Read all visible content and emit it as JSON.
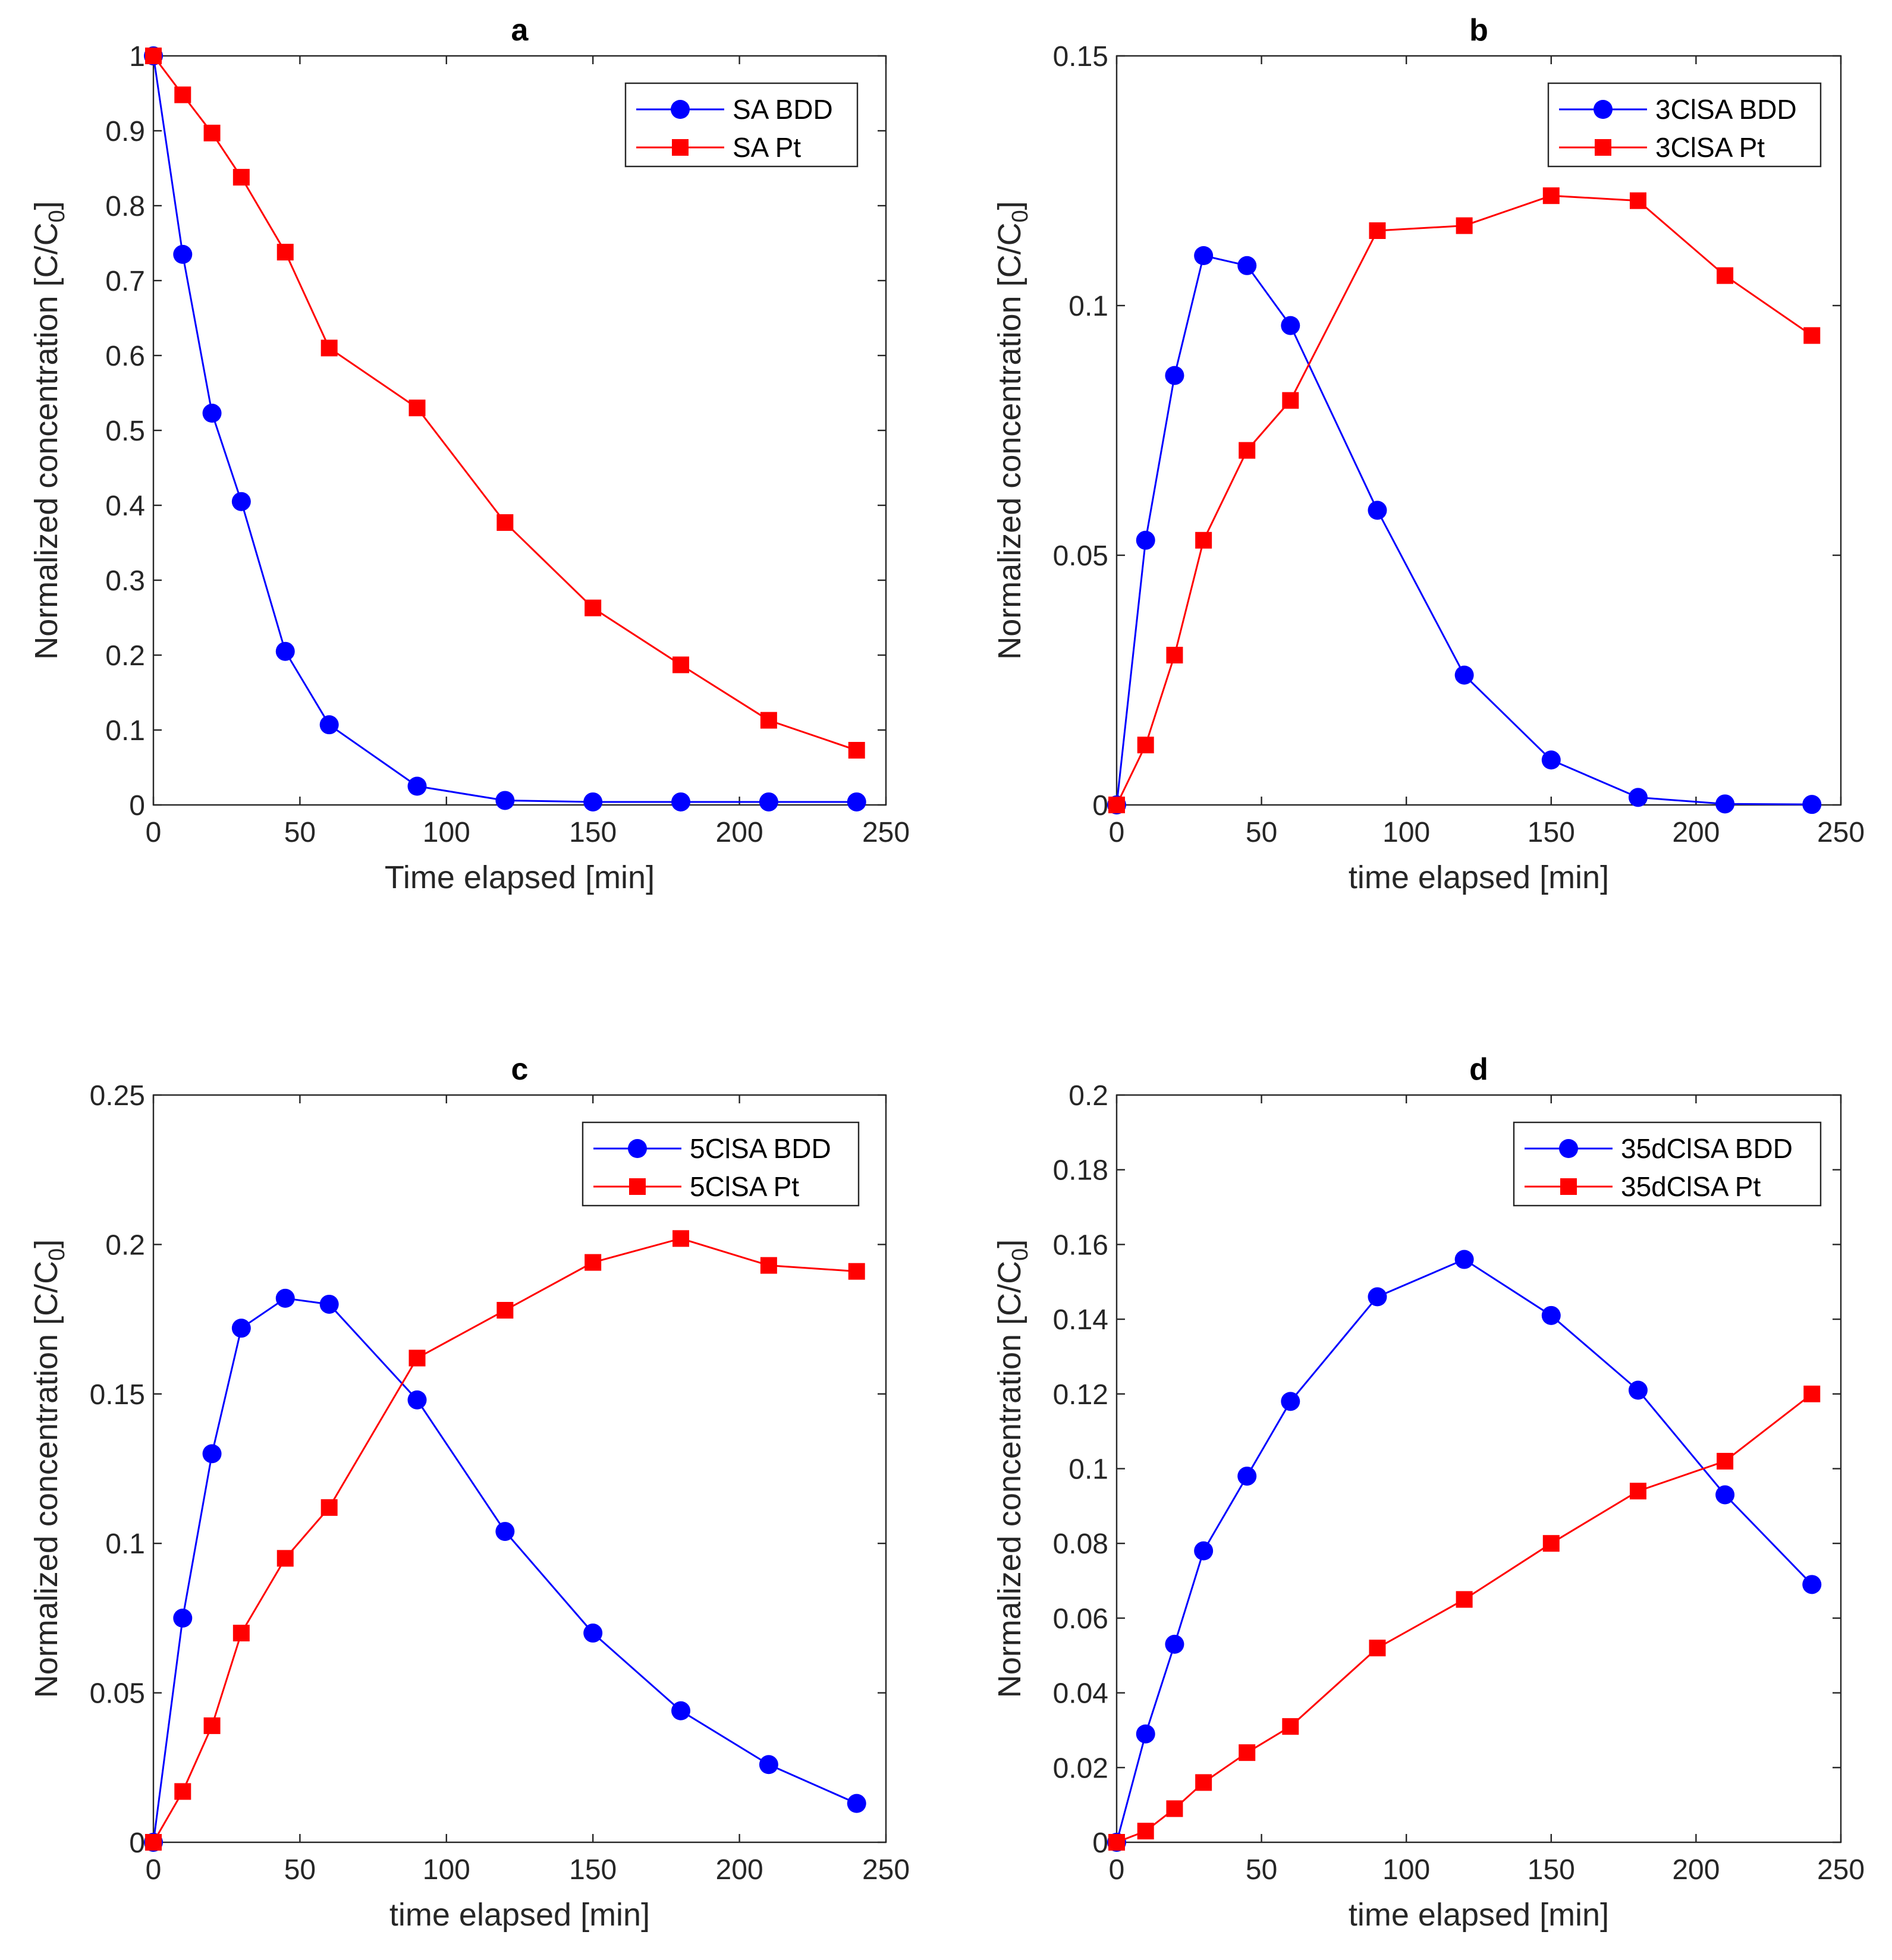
{
  "chart_data": [
    {
      "type": "line",
      "panel_title": "a",
      "xlabel": "Time elapsed [min]",
      "ylabel": "Normalized concentration [C/C",
      "ylabel_subscript": "0",
      "ylabel_close": "]",
      "xlim": [
        0,
        250
      ],
      "ylim": [
        0,
        1
      ],
      "xticks": [
        "0",
        "50",
        "100",
        "150",
        "200",
        "250"
      ],
      "yticks": [
        "0",
        "0.1",
        "0.2",
        "0.3",
        "0.4",
        "0.5",
        "0.6",
        "0.7",
        "0.8",
        "0.9",
        "1"
      ],
      "legend_position": "top-right",
      "x": [
        0,
        10,
        20,
        30,
        45,
        60,
        90,
        120,
        150,
        180,
        210,
        240
      ],
      "series": [
        {
          "name": "SA BDD",
          "color": "#0000ff",
          "marker": "circle",
          "values": [
            1.0,
            0.735,
            0.523,
            0.405,
            0.205,
            0.107,
            0.025,
            0.006,
            0.004,
            0.004,
            0.004,
            0.004
          ]
        },
        {
          "name": "SA Pt",
          "color": "#ff0000",
          "marker": "square",
          "values": [
            1.0,
            0.948,
            0.897,
            0.838,
            0.738,
            0.61,
            0.53,
            0.377,
            0.263,
            0.187,
            0.113,
            0.073
          ]
        }
      ]
    },
    {
      "type": "line",
      "panel_title": "b",
      "xlabel": "time elapsed [min]",
      "ylabel": "Normalized concentration [C/C",
      "ylabel_subscript": "0",
      "ylabel_close": "]",
      "xlim": [
        0,
        250
      ],
      "ylim": [
        0,
        0.15
      ],
      "xticks": [
        "0",
        "50",
        "100",
        "150",
        "200",
        "250"
      ],
      "yticks": [
        "0",
        "0.05",
        "0.1",
        "0.15"
      ],
      "legend_position": "top-right",
      "x": [
        0,
        10,
        20,
        30,
        45,
        60,
        90,
        120,
        150,
        180,
        210,
        240
      ],
      "series": [
        {
          "name": "3ClSA BDD",
          "color": "#0000ff",
          "marker": "circle",
          "values": [
            0.0,
            0.053,
            0.086,
            0.11,
            0.108,
            0.096,
            0.059,
            0.026,
            0.009,
            0.0015,
            0.0002,
            0.0001
          ]
        },
        {
          "name": "3ClSA Pt",
          "color": "#ff0000",
          "marker": "square",
          "values": [
            0.0,
            0.012,
            0.03,
            0.053,
            0.071,
            0.081,
            0.115,
            0.116,
            0.122,
            0.121,
            0.106,
            0.094
          ]
        }
      ]
    },
    {
      "type": "line",
      "panel_title": "c",
      "xlabel": "time elapsed [min]",
      "ylabel": "Normalized concentration [C/C",
      "ylabel_subscript": "0",
      "ylabel_close": "]",
      "xlim": [
        0,
        250
      ],
      "ylim": [
        0,
        0.25
      ],
      "xticks": [
        "0",
        "50",
        "100",
        "150",
        "200",
        "250"
      ],
      "yticks": [
        "0",
        "0.05",
        "0.1",
        "0.15",
        "0.2",
        "0.25"
      ],
      "legend_position": "top-right",
      "x": [
        0,
        10,
        20,
        30,
        45,
        60,
        90,
        120,
        150,
        180,
        210,
        240
      ],
      "series": [
        {
          "name": "5ClSA BDD",
          "color": "#0000ff",
          "marker": "circle",
          "values": [
            0.0,
            0.075,
            0.13,
            0.172,
            0.182,
            0.18,
            0.148,
            0.104,
            0.07,
            0.044,
            0.026,
            0.013
          ]
        },
        {
          "name": "5ClSA Pt",
          "color": "#ff0000",
          "marker": "square",
          "values": [
            0.0,
            0.017,
            0.039,
            0.07,
            0.095,
            0.112,
            0.162,
            0.178,
            0.194,
            0.202,
            0.193,
            0.191
          ]
        }
      ]
    },
    {
      "type": "line",
      "panel_title": "d",
      "xlabel": "time elapsed [min]",
      "ylabel": "Normalized concentration [C/C",
      "ylabel_subscript": "0",
      "ylabel_close": "]",
      "xlim": [
        0,
        250
      ],
      "ylim": [
        0,
        0.2
      ],
      "xticks": [
        "0",
        "50",
        "100",
        "150",
        "200",
        "250"
      ],
      "yticks": [
        "0",
        "0.02",
        "0.04",
        "0.06",
        "0.08",
        "0.1",
        "0.12",
        "0.14",
        "0.16",
        "0.18",
        "0.2"
      ],
      "legend_position": "top-right",
      "x": [
        0,
        10,
        20,
        30,
        45,
        60,
        90,
        120,
        150,
        180,
        210,
        240
      ],
      "series": [
        {
          "name": "35dClSA BDD",
          "color": "#0000ff",
          "marker": "circle",
          "values": [
            0.0,
            0.029,
            0.053,
            0.078,
            0.098,
            0.118,
            0.146,
            0.156,
            0.141,
            0.121,
            0.093,
            0.069
          ]
        },
        {
          "name": "35dClSA Pt",
          "color": "#ff0000",
          "marker": "square",
          "values": [
            0.0,
            0.003,
            0.009,
            0.016,
            0.024,
            0.031,
            0.052,
            0.065,
            0.08,
            0.094,
            0.102,
            0.12
          ]
        }
      ]
    }
  ]
}
